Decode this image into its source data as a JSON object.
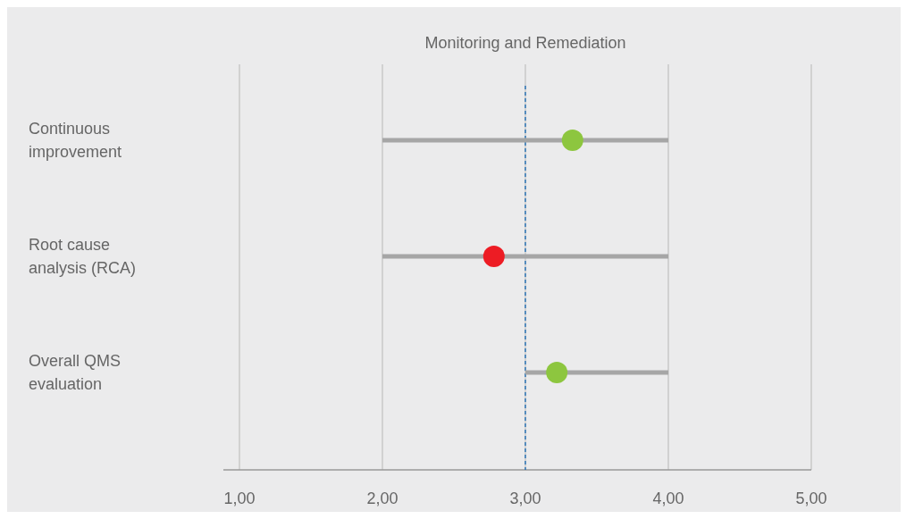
{
  "chart_data": {
    "type": "bar",
    "orientation": "horizontal",
    "title": "Monitoring and Remediation",
    "categories": [
      "Continuous improvement",
      "Root cause analysis (RCA)",
      "Overall QMS evaluation"
    ],
    "series": [
      {
        "color": "#a6a6a6",
        "base": [
          2,
          2,
          3
        ],
        "values": [
          2,
          2,
          1
        ]
      },
      {
        "type": "scatter",
        "colors": [
          "#8dc63f",
          "#ed1c24",
          "#8dc63f"
        ],
        "values": [
          3.33,
          2.78,
          3.22
        ]
      }
    ],
    "xlim": [
      1,
      5
    ],
    "xticks": [
      {
        "value": 1,
        "label": "1,00"
      },
      {
        "value": 2,
        "label": "2,00"
      },
      {
        "value": 3,
        "label": "3,00"
      },
      {
        "value": 4,
        "label": "4,00"
      },
      {
        "value": 5,
        "label": "5,00"
      }
    ],
    "grid": "x",
    "ref_lines": [
      {
        "axis": "x",
        "value": 3,
        "color": "#2e75b6",
        "line_style": "dashed"
      }
    ]
  }
}
